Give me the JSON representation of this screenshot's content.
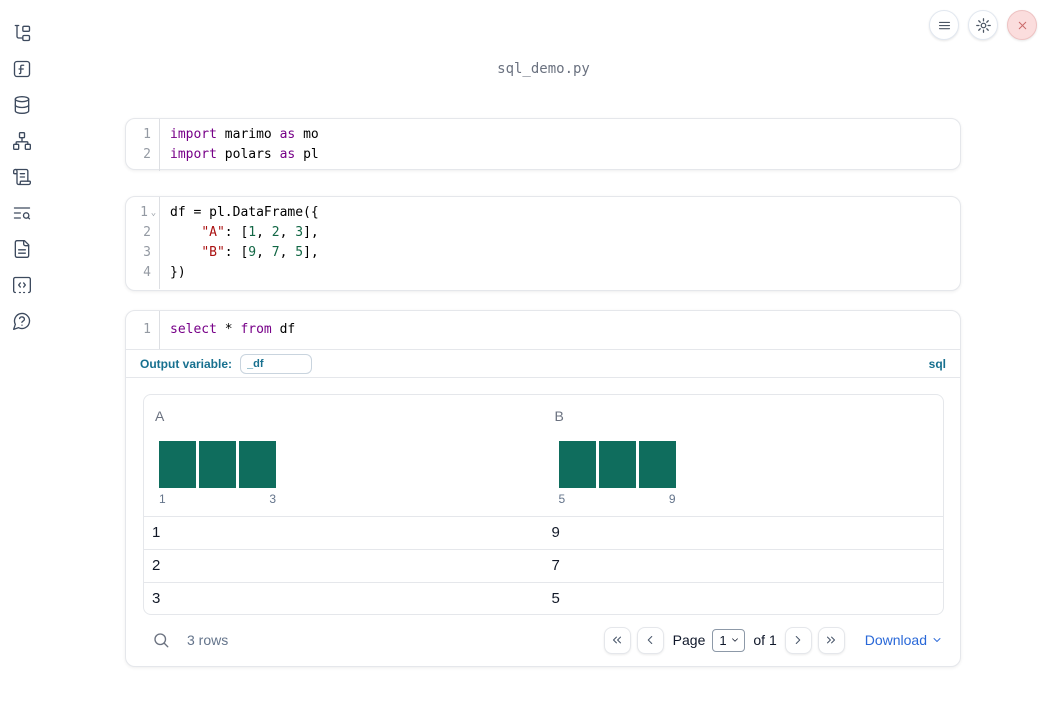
{
  "window": {
    "filename": "sql_demo.py"
  },
  "sidebar": {
    "icons": [
      "file-tree",
      "function",
      "datasets-database",
      "dependency-graph",
      "scratchpad-scroll",
      "text-search",
      "documentation",
      "snippets-code",
      "help"
    ]
  },
  "topbar": {
    "buttons": [
      "menu",
      "settings-gear",
      "close"
    ]
  },
  "cells": [
    {
      "type": "python",
      "lines": [
        {
          "num": "1",
          "tokens": [
            {
              "c": "kw",
              "t": "import"
            },
            {
              "c": "pl",
              "t": " marimo "
            },
            {
              "c": "kw",
              "t": "as"
            },
            {
              "c": "pl",
              "t": " mo"
            }
          ]
        },
        {
          "num": "2",
          "tokens": [
            {
              "c": "kw",
              "t": "import"
            },
            {
              "c": "pl",
              "t": " polars "
            },
            {
              "c": "kw",
              "t": "as"
            },
            {
              "c": "pl",
              "t": " pl"
            }
          ]
        }
      ]
    },
    {
      "type": "python",
      "lines": [
        {
          "num": "1",
          "fold": true,
          "tokens": [
            {
              "c": "pl",
              "t": "df = pl.DataFrame({"
            }
          ]
        },
        {
          "num": "2",
          "tokens": [
            {
              "c": "pl",
              "t": "    "
            },
            {
              "c": "str",
              "t": "\"A\""
            },
            {
              "c": "pl",
              "t": ": ["
            },
            {
              "c": "num",
              "t": "1"
            },
            {
              "c": "pl",
              "t": ", "
            },
            {
              "c": "num",
              "t": "2"
            },
            {
              "c": "pl",
              "t": ", "
            },
            {
              "c": "num",
              "t": "3"
            },
            {
              "c": "pl",
              "t": "],"
            }
          ]
        },
        {
          "num": "3",
          "tokens": [
            {
              "c": "pl",
              "t": "    "
            },
            {
              "c": "str",
              "t": "\"B\""
            },
            {
              "c": "pl",
              "t": ": ["
            },
            {
              "c": "num",
              "t": "9"
            },
            {
              "c": "pl",
              "t": ", "
            },
            {
              "c": "num",
              "t": "7"
            },
            {
              "c": "pl",
              "t": ", "
            },
            {
              "c": "num",
              "t": "5"
            },
            {
              "c": "pl",
              "t": "],"
            }
          ]
        },
        {
          "num": "4",
          "tokens": [
            {
              "c": "pl",
              "t": "})"
            }
          ]
        }
      ]
    },
    {
      "type": "sql",
      "lines": [
        {
          "num": "1",
          "tokens": [
            {
              "c": "kw",
              "t": "select"
            },
            {
              "c": "pl",
              "t": " * "
            },
            {
              "c": "kw",
              "t": "from"
            },
            {
              "c": "pl",
              "t": " df"
            }
          ]
        }
      ],
      "footer": {
        "output_variable_label": "Output variable:",
        "output_variable_value": "_df",
        "language": "sql"
      }
    }
  ],
  "table": {
    "columns": [
      {
        "label": "A",
        "histogram": {
          "bars": [
            1,
            1,
            1
          ],
          "min_label": "1",
          "max_label": "3"
        }
      },
      {
        "label": "B",
        "histogram": {
          "bars": [
            1,
            1,
            1
          ],
          "min_label": "5",
          "max_label": "9"
        }
      }
    ],
    "rows": [
      {
        "A": "1",
        "B": "9"
      },
      {
        "A": "2",
        "B": "7"
      },
      {
        "A": "3",
        "B": "5"
      }
    ],
    "footer": {
      "row_count": "3 rows",
      "page_label": "Page",
      "page_value": "1",
      "of_label": "of 1",
      "download_label": "Download"
    }
  },
  "colors": {
    "accent_teal": "#17708f",
    "histogram_bar": "#0f6d5d",
    "code_keyword": "#770088",
    "code_string": "#aa1111",
    "code_number": "#116644",
    "download_link": "#2968d8",
    "close_button_bg": "#fbdddd"
  }
}
